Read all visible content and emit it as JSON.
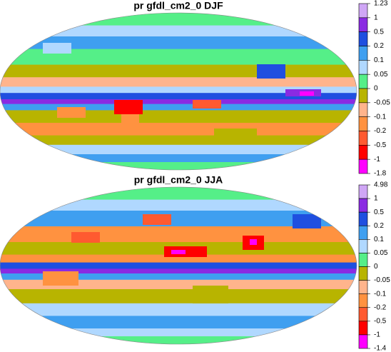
{
  "maps": [
    {
      "title": "pr gfdl_cm2_0 DJF",
      "colorbar": {
        "levels": [
          1.23,
          1,
          0.5,
          0.2,
          0.1,
          0.05,
          0,
          -0.05,
          -0.1,
          -0.2,
          -0.5,
          -1,
          -1.8
        ],
        "colors": [
          "#cfa6f5",
          "#8a2be2",
          "#1f4fe0",
          "#3f9ff0",
          "#b0d8ff",
          "#55ef88",
          "#b8b400",
          "#ffb48c",
          "#ff9240",
          "#ff5a30",
          "#ff0000",
          "#ff00ff"
        ]
      }
    },
    {
      "title": "pr gfdl_cm2_0 JJA",
      "colorbar": {
        "levels": [
          4.98,
          1,
          0.5,
          0.2,
          0.1,
          0.05,
          0,
          -0.05,
          -0.1,
          -0.2,
          -0.5,
          -1,
          -1.4
        ],
        "colors": [
          "#cfa6f5",
          "#8a2be2",
          "#1f4fe0",
          "#3f9ff0",
          "#b0d8ff",
          "#55ef88",
          "#b8b400",
          "#ffb48c",
          "#ff9240",
          "#ff5a30",
          "#ff0000",
          "#ff00ff"
        ]
      }
    }
  ]
}
